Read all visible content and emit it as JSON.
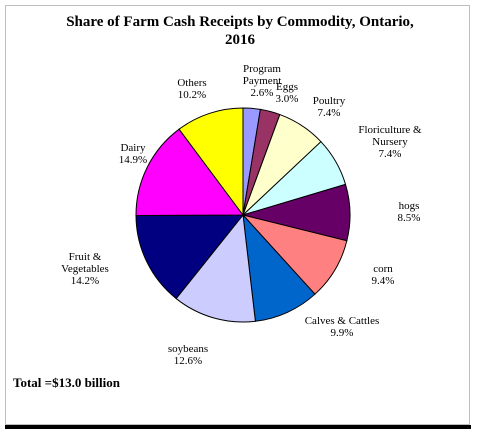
{
  "chart_data": {
    "type": "pie",
    "title_lines": [
      "Share of Farm Cash Receipts by Commodity, Ontario,",
      "2016"
    ],
    "slices": [
      {
        "label_lines": [
          "Program",
          "Payment"
        ],
        "value": 2.6,
        "value_text": "2.6%",
        "color": "#9999ff"
      },
      {
        "label_lines": [
          "Eggs"
        ],
        "value": 3.0,
        "value_text": "3.0%",
        "color": "#993366"
      },
      {
        "label_lines": [
          "Poultry"
        ],
        "value": 7.4,
        "value_text": "7.4%",
        "color": "#ffffcc"
      },
      {
        "label_lines": [
          "Floriculture &",
          "Nursery"
        ],
        "value": 7.4,
        "value_text": "7.4%",
        "color": "#ccffff"
      },
      {
        "label_lines": [
          "hogs"
        ],
        "value": 8.5,
        "value_text": "8.5%",
        "color": "#660066"
      },
      {
        "label_lines": [
          "corn"
        ],
        "value": 9.4,
        "value_text": "9.4%",
        "color": "#ff8080"
      },
      {
        "label_lines": [
          "Calves & Cattles"
        ],
        "value": 9.9,
        "value_text": "9.9%",
        "color": "#0066cc"
      },
      {
        "label_lines": [
          "soybeans"
        ],
        "value": 12.6,
        "value_text": "12.6%",
        "color": "#ccccff"
      },
      {
        "label_lines": [
          "Fruit &",
          "Vegetables"
        ],
        "value": 14.2,
        "value_text": "14.2%",
        "color": "#000080"
      },
      {
        "label_lines": [
          "Dairy"
        ],
        "value": 14.9,
        "value_text": "14.9%",
        "color": "#ff00ff"
      },
      {
        "label_lines": [
          "Others"
        ],
        "value": 10.2,
        "value_text": "10.2%",
        "color": "#ffff00"
      }
    ],
    "start": "12 o'clock",
    "direction": "clockwise",
    "legend": "none"
  },
  "total_text": "Total =$13.0 billion"
}
